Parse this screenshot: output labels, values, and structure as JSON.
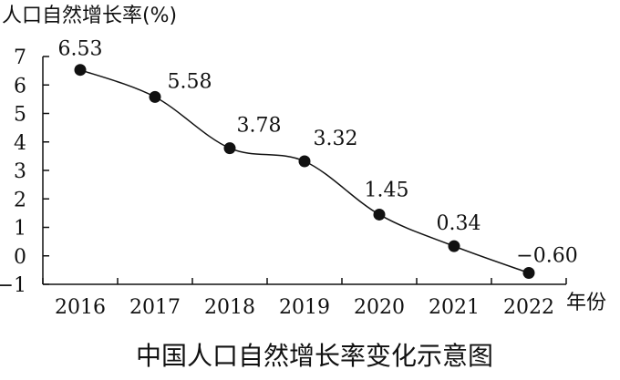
{
  "chart_data": {
    "type": "line",
    "title": "中国人口自然增长率变化示意图",
    "ylabel": "人口自然增长率(%)",
    "xlabel_unit": "年份",
    "categories": [
      "2016",
      "2017",
      "2018",
      "2019",
      "2020",
      "2021",
      "2022"
    ],
    "values": [
      6.53,
      5.58,
      3.78,
      3.32,
      1.45,
      0.34,
      -0.6
    ],
    "value_labels": [
      "6.53",
      "5.58",
      "3.78",
      "3.32",
      "1.45",
      "0.34",
      "−0.60"
    ],
    "yticks": [
      -1,
      0,
      1,
      2,
      3,
      4,
      5,
      6,
      7
    ],
    "ylim": [
      -1,
      7
    ],
    "grid": false,
    "colors": {
      "line": "#111111",
      "axis": "#111111",
      "marker": "#111111",
      "text": "#111111"
    }
  }
}
